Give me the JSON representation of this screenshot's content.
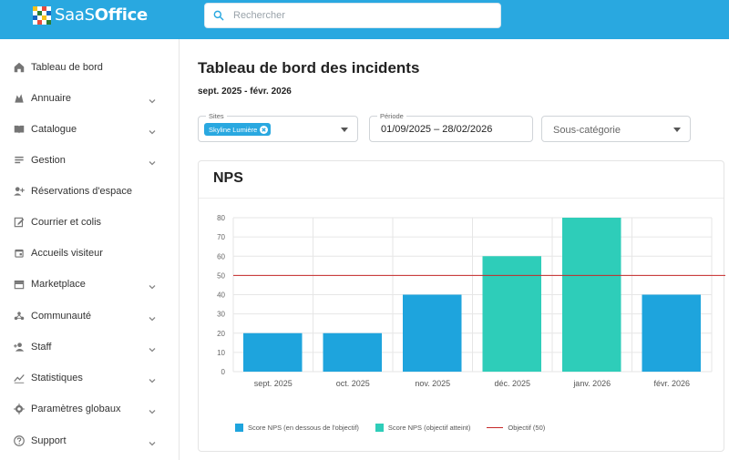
{
  "brand": {
    "name_main": "SaaS",
    "name_accent": "Office"
  },
  "search": {
    "placeholder": "Rechercher"
  },
  "sidebar": {
    "items": [
      {
        "label": "Tableau de bord",
        "icon": "home-icon",
        "chevron": false
      },
      {
        "label": "Annuaire",
        "icon": "people-icon",
        "chevron": true
      },
      {
        "label": "Catalogue",
        "icon": "book-icon",
        "chevron": true
      },
      {
        "label": "Gestion",
        "icon": "list-icon",
        "chevron": true
      },
      {
        "label": "Réservations d'espace",
        "icon": "person-add-icon",
        "chevron": false
      },
      {
        "label": "Courrier et colis",
        "icon": "edit-icon",
        "chevron": false
      },
      {
        "label": "Accueils visiteur",
        "icon": "calendar-icon",
        "chevron": false
      },
      {
        "label": "Marketplace",
        "icon": "store-icon",
        "chevron": true
      },
      {
        "label": "Communauté",
        "icon": "community-icon",
        "chevron": true
      },
      {
        "label": "Staff",
        "icon": "staff-icon",
        "chevron": true
      },
      {
        "label": "Statistiques",
        "icon": "chart-icon",
        "chevron": true
      },
      {
        "label": "Paramètres globaux",
        "icon": "gear-icon",
        "chevron": true
      },
      {
        "label": "Support",
        "icon": "help-icon",
        "chevron": true
      }
    ]
  },
  "page": {
    "title": "Tableau de bord des incidents",
    "subtitle": "sept. 2025 - févr. 2026"
  },
  "filters": {
    "sites": {
      "legend": "Sites",
      "chip": "Skyline Lumière"
    },
    "period": {
      "legend": "Période",
      "value": "01/09/2025 – 28/02/2026"
    },
    "subcategory": {
      "placeholder": "Sous-catégorie"
    }
  },
  "card": {
    "title": "NPS"
  },
  "chart_data": {
    "type": "bar",
    "categories": [
      "sept. 2025",
      "oct. 2025",
      "nov. 2025",
      "déc. 2025",
      "janv. 2026",
      "févr. 2026"
    ],
    "values": [
      20,
      20,
      40,
      60,
      80,
      40
    ],
    "series_status": [
      "below",
      "below",
      "below",
      "met",
      "met",
      "below"
    ],
    "y_ticks": [
      0,
      10,
      20,
      30,
      40,
      50,
      60,
      70,
      80
    ],
    "ylim": [
      0,
      80
    ],
    "objective": 50,
    "grid": true,
    "legend_placement": "bottom",
    "legend": [
      {
        "label": "Score NPS (en dessous de l'objectif)",
        "color": "#1ea4dd"
      },
      {
        "label": "Score NPS (objectif atteint)",
        "color": "#2ecdb9"
      },
      {
        "label": "Objectif (50)",
        "color": "#c62828"
      }
    ],
    "colors": {
      "below": "#1ea4dd",
      "met": "#2ecdb9",
      "objective": "#c62828"
    }
  },
  "colors": {
    "accent": "#29a8e0"
  }
}
